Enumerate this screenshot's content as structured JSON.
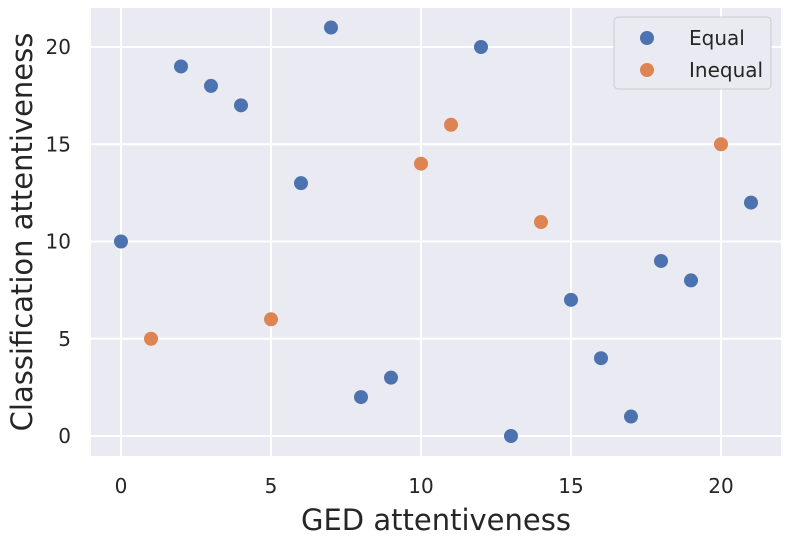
{
  "chart_data": {
    "type": "scatter",
    "title": "",
    "xlabel": "GED attentiveness",
    "ylabel": "Classification attentiveness",
    "xlim": [
      -1,
      22
    ],
    "ylim": [
      -1,
      22
    ],
    "xticks": [
      0,
      5,
      10,
      15,
      20
    ],
    "yticks": [
      0,
      5,
      10,
      15,
      20
    ],
    "grid": true,
    "legend_position": "top-right",
    "series": [
      {
        "name": "Equal",
        "color": "#4c72b0",
        "points": [
          {
            "x": 0,
            "y": 10
          },
          {
            "x": 2,
            "y": 19
          },
          {
            "x": 3,
            "y": 18
          },
          {
            "x": 4,
            "y": 17
          },
          {
            "x": 6,
            "y": 13
          },
          {
            "x": 7,
            "y": 21
          },
          {
            "x": 8,
            "y": 2
          },
          {
            "x": 9,
            "y": 3
          },
          {
            "x": 12,
            "y": 20
          },
          {
            "x": 13,
            "y": 0
          },
          {
            "x": 15,
            "y": 7
          },
          {
            "x": 16,
            "y": 4
          },
          {
            "x": 17,
            "y": 1
          },
          {
            "x": 18,
            "y": 9
          },
          {
            "x": 19,
            "y": 8
          },
          {
            "x": 21,
            "y": 12
          }
        ]
      },
      {
        "name": "Inequal",
        "color": "#dd8452",
        "points": [
          {
            "x": 1,
            "y": 5
          },
          {
            "x": 5,
            "y": 6
          },
          {
            "x": 10,
            "y": 14
          },
          {
            "x": 11,
            "y": 16
          },
          {
            "x": 14,
            "y": 11
          },
          {
            "x": 20,
            "y": 15
          }
        ]
      }
    ]
  }
}
